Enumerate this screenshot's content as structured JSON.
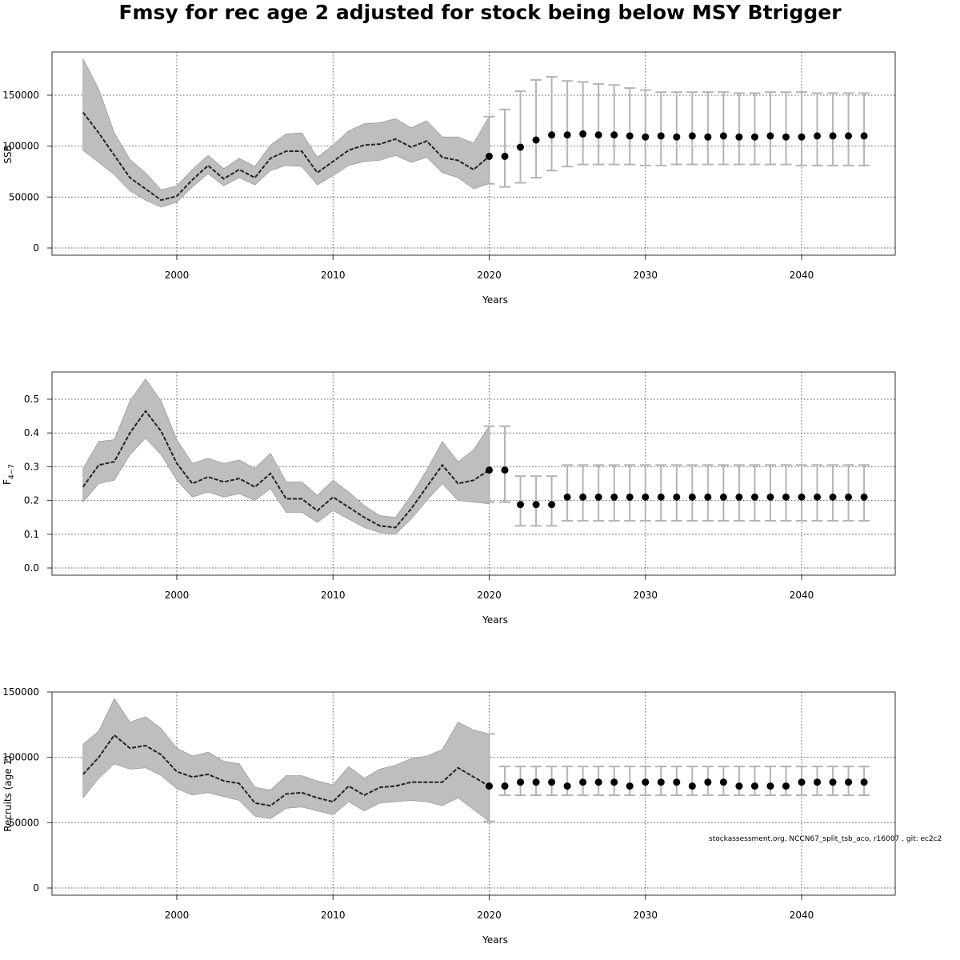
{
  "title": "Fmsy for rec age 2 adjusted for stock being below MSY Btrigger",
  "footnote": "stockassessment.org, NCCN67_split_tsb_aco, r16007 , git: ec2c2",
  "colors": {
    "band": "#bebebe",
    "band_edge": "#8c8c8c",
    "line": "#222222",
    "errorbar": "#b4b4b4",
    "point": "#000000",
    "grid": "#555555"
  },
  "chart_data": [
    {
      "type": "line",
      "panel": "ssb",
      "ylabel": "SSB",
      "xlabel": "Years",
      "xlim": [
        1994,
        2045
      ],
      "ylim": [
        0,
        180000
      ],
      "xticks": [
        2000,
        2010,
        2020,
        2030,
        2040
      ],
      "yticks": [
        0,
        50000,
        100000,
        150000
      ],
      "grid": true,
      "history": {
        "x": [
          1994,
          1995,
          1996,
          1997,
          1998,
          1999,
          2000,
          2001,
          2002,
          2003,
          2004,
          2005,
          2006,
          2007,
          2008,
          2009,
          2010,
          2011,
          2012,
          2013,
          2014,
          2015,
          2016,
          2017,
          2018,
          2019,
          2020
        ],
        "y": [
          133000,
          113000,
          91000,
          69000,
          58000,
          47000,
          51000,
          67000,
          81000,
          68000,
          77000,
          69000,
          88000,
          95000,
          95000,
          74000,
          85000,
          96000,
          101000,
          102000,
          107000,
          99000,
          105000,
          89000,
          86000,
          77000,
          90000
        ],
        "lower": [
          96000,
          84000,
          72000,
          56000,
          47000,
          40000,
          45000,
          60000,
          73000,
          61000,
          69000,
          62000,
          76000,
          81000,
          80000,
          62000,
          71000,
          81000,
          85000,
          86000,
          91000,
          84000,
          89000,
          74000,
          69000,
          58000,
          63000
        ],
        "upper": [
          186000,
          156000,
          113000,
          87000,
          74000,
          57000,
          61000,
          77000,
          91000,
          78000,
          88000,
          80000,
          101000,
          112000,
          113000,
          89000,
          101000,
          115000,
          122000,
          123000,
          127000,
          118000,
          125000,
          109000,
          109000,
          103000,
          129000
        ]
      },
      "projection": {
        "x": [
          2020,
          2021,
          2022,
          2023,
          2024,
          2025,
          2026,
          2027,
          2028,
          2029,
          2030,
          2031,
          2032,
          2033,
          2034,
          2035,
          2036,
          2037,
          2038,
          2039,
          2040,
          2041,
          2042,
          2043,
          2044
        ],
        "y": [
          90000,
          90000,
          99000,
          106000,
          111000,
          111000,
          112000,
          111000,
          111000,
          110000,
          109000,
          110000,
          109000,
          110000,
          109000,
          110000,
          109000,
          109000,
          110000,
          109000,
          109000,
          110000,
          110000,
          110000,
          110000
        ],
        "lower": [
          63000,
          60000,
          64000,
          69000,
          76000,
          80000,
          82000,
          82000,
          82000,
          82000,
          81000,
          81000,
          82000,
          82000,
          82000,
          82000,
          82000,
          82000,
          82000,
          82000,
          81000,
          81000,
          81000,
          81000,
          81000
        ],
        "upper": [
          129000,
          136000,
          154000,
          165000,
          168000,
          164000,
          163000,
          161000,
          160000,
          157000,
          155000,
          153000,
          153000,
          153000,
          153000,
          153000,
          152000,
          152000,
          153000,
          153000,
          153000,
          152000,
          152000,
          152000,
          152000
        ]
      }
    },
    {
      "type": "line",
      "panel": "f",
      "ylabel": "F4-7",
      "ylabel_main": "F",
      "ylabel_sub": "4−7",
      "xlabel": "Years",
      "xlim": [
        1994,
        2045
      ],
      "ylim": [
        0,
        0.6
      ],
      "xticks": [
        2000,
        2010,
        2020,
        2030,
        2040
      ],
      "yticks": [
        0.0,
        0.1,
        0.2,
        0.3,
        0.4,
        0.5
      ],
      "ytick_labels": [
        "0.0",
        "0.1",
        "0.2",
        "0.3",
        "0.4",
        "0.5"
      ],
      "grid": true,
      "history": {
        "x": [
          1994,
          1995,
          1996,
          1997,
          1998,
          1999,
          2000,
          2001,
          2002,
          2003,
          2004,
          2005,
          2006,
          2007,
          2008,
          2009,
          2010,
          2011,
          2012,
          2013,
          2014,
          2015,
          2016,
          2017,
          2018,
          2019,
          2020
        ],
        "y": [
          0.24,
          0.305,
          0.315,
          0.4,
          0.465,
          0.405,
          0.31,
          0.25,
          0.27,
          0.255,
          0.265,
          0.24,
          0.28,
          0.205,
          0.205,
          0.17,
          0.21,
          0.18,
          0.15,
          0.125,
          0.12,
          0.175,
          0.24,
          0.305,
          0.25,
          0.26,
          0.29
        ],
        "lower": [
          0.195,
          0.25,
          0.26,
          0.335,
          0.385,
          0.335,
          0.26,
          0.21,
          0.225,
          0.21,
          0.22,
          0.2,
          0.235,
          0.165,
          0.165,
          0.135,
          0.17,
          0.145,
          0.12,
          0.105,
          0.1,
          0.145,
          0.2,
          0.25,
          0.2,
          0.195,
          0.19
        ],
        "upper": [
          0.295,
          0.375,
          0.38,
          0.495,
          0.56,
          0.495,
          0.38,
          0.31,
          0.325,
          0.31,
          0.32,
          0.295,
          0.34,
          0.255,
          0.255,
          0.215,
          0.26,
          0.225,
          0.185,
          0.155,
          0.15,
          0.215,
          0.29,
          0.375,
          0.315,
          0.35,
          0.42
        ]
      },
      "projection": {
        "x": [
          2020,
          2021,
          2022,
          2023,
          2024,
          2025,
          2026,
          2027,
          2028,
          2029,
          2030,
          2031,
          2032,
          2033,
          2034,
          2035,
          2036,
          2037,
          2038,
          2039,
          2040,
          2041,
          2042,
          2043,
          2044
        ],
        "y": [
          0.29,
          0.29,
          0.188,
          0.188,
          0.188,
          0.21,
          0.21,
          0.21,
          0.21,
          0.21,
          0.21,
          0.21,
          0.21,
          0.21,
          0.21,
          0.21,
          0.21,
          0.21,
          0.21,
          0.21,
          0.21,
          0.21,
          0.21,
          0.21,
          0.21
        ],
        "lower": [
          0.195,
          0.195,
          0.125,
          0.125,
          0.125,
          0.14,
          0.14,
          0.14,
          0.14,
          0.14,
          0.14,
          0.14,
          0.14,
          0.14,
          0.14,
          0.14,
          0.14,
          0.14,
          0.14,
          0.14,
          0.14,
          0.14,
          0.14,
          0.14,
          0.14
        ],
        "upper": [
          0.42,
          0.42,
          0.272,
          0.272,
          0.272,
          0.305,
          0.305,
          0.305,
          0.305,
          0.305,
          0.305,
          0.305,
          0.305,
          0.305,
          0.305,
          0.305,
          0.305,
          0.305,
          0.305,
          0.305,
          0.305,
          0.305,
          0.305,
          0.305,
          0.305
        ]
      }
    },
    {
      "type": "line",
      "panel": "recruits",
      "ylabel": "Recruits (age 1)",
      "xlabel": "Years",
      "xlim": [
        1994,
        2045
      ],
      "ylim": [
        0,
        150000
      ],
      "xticks": [
        2000,
        2010,
        2020,
        2030,
        2040
      ],
      "yticks": [
        0,
        50000,
        100000,
        150000
      ],
      "grid": true,
      "history": {
        "x": [
          1994,
          1995,
          1996,
          1997,
          1998,
          1999,
          2000,
          2001,
          2002,
          2003,
          2004,
          2005,
          2006,
          2007,
          2008,
          2009,
          2010,
          2011,
          2012,
          2013,
          2014,
          2015,
          2016,
          2017,
          2018,
          2019,
          2020
        ],
        "y": [
          87000,
          100000,
          117000,
          107000,
          109000,
          102000,
          89000,
          85000,
          87000,
          82000,
          80000,
          65000,
          63000,
          72000,
          73000,
          69000,
          66000,
          78000,
          71000,
          77000,
          78000,
          81000,
          81000,
          81000,
          92000,
          85000,
          78000
        ],
        "lower": [
          69000,
          84000,
          95000,
          91000,
          92000,
          86000,
          76000,
          71000,
          73000,
          70000,
          67000,
          55000,
          53000,
          61000,
          62000,
          59000,
          56000,
          66000,
          59000,
          65000,
          66000,
          67000,
          66000,
          63000,
          69000,
          60000,
          51000
        ],
        "upper": [
          110000,
          120000,
          145000,
          127000,
          131000,
          122000,
          107000,
          101000,
          104000,
          97000,
          95000,
          77000,
          75000,
          86000,
          86000,
          82000,
          79000,
          93000,
          84000,
          91000,
          94000,
          99000,
          101000,
          106000,
          127000,
          121000,
          118000
        ]
      },
      "projection": {
        "x": [
          2020,
          2021,
          2022,
          2023,
          2024,
          2025,
          2026,
          2027,
          2028,
          2029,
          2030,
          2031,
          2032,
          2033,
          2034,
          2035,
          2036,
          2037,
          2038,
          2039,
          2040,
          2041,
          2042,
          2043,
          2044
        ],
        "y": [
          78000,
          78000,
          81000,
          81000,
          81000,
          78000,
          81000,
          81000,
          81000,
          78000,
          81000,
          81000,
          81000,
          78000,
          81000,
          81000,
          78000,
          78000,
          78000,
          78000,
          81000,
          81000,
          81000,
          81000,
          81000
        ],
        "lower": [
          51000,
          71000,
          71000,
          71000,
          71000,
          71000,
          71000,
          71000,
          71000,
          71000,
          71000,
          71000,
          71000,
          71000,
          71000,
          71000,
          71000,
          71000,
          71000,
          71000,
          71000,
          71000,
          71000,
          71000,
          71000
        ],
        "upper": [
          118000,
          93000,
          93000,
          93000,
          93000,
          93000,
          93000,
          93000,
          93000,
          93000,
          93000,
          93000,
          93000,
          93000,
          93000,
          93000,
          93000,
          93000,
          93000,
          93000,
          93000,
          93000,
          93000,
          93000,
          93000
        ]
      }
    }
  ]
}
